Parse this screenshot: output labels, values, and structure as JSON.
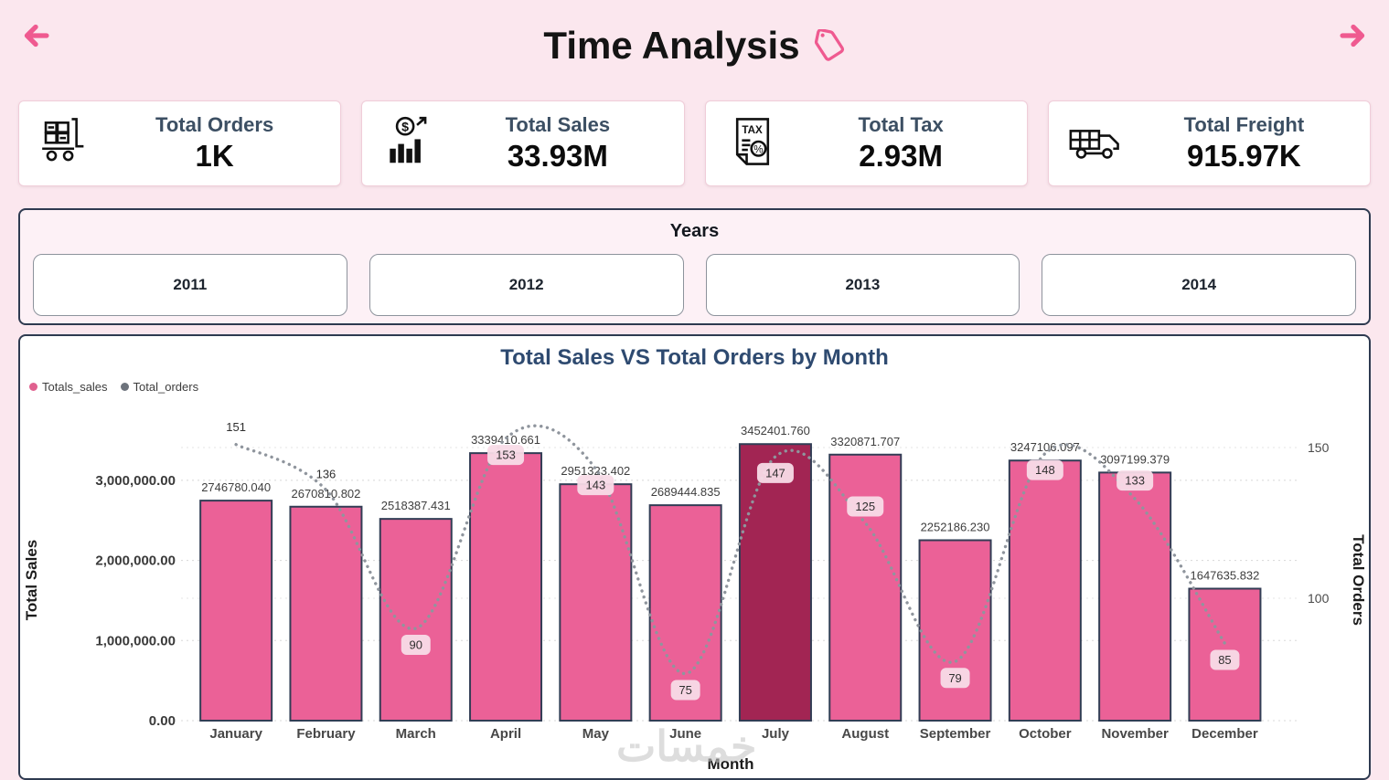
{
  "header": {
    "title": "Time Analysis",
    "back_icon": "arrow-left-icon",
    "forward_icon": "arrow-right-icon",
    "title_icon": "tag-icon"
  },
  "kpis": [
    {
      "label": "Total Orders",
      "value": "1K",
      "icon": "pallet-trolley-icon"
    },
    {
      "label": "Total Sales",
      "value": "33.93M",
      "icon": "money-growth-icon"
    },
    {
      "label": "Total Tax",
      "value": "2.93M",
      "icon": "tax-document-icon"
    },
    {
      "label": "Total Freight",
      "value": "915.97K",
      "icon": "delivery-truck-icon"
    }
  ],
  "years_slicer": {
    "title": "Years",
    "options": [
      "2011",
      "2012",
      "2013",
      "2014"
    ]
  },
  "chart_data": {
    "type": "combo-bar-line",
    "title": "Total Sales VS Total Orders by Month",
    "xlabel": "Month",
    "ylabel_left": "Total Sales",
    "ylabel_right": "Total Orders",
    "legend": [
      {
        "name": "Totals_sales",
        "color": "#e0618f"
      },
      {
        "name": "Total_orders",
        "color": "#6d737c"
      }
    ],
    "legend_position": "top-left",
    "grid": true,
    "categories": [
      "January",
      "February",
      "March",
      "April",
      "May",
      "June",
      "July",
      "August",
      "September",
      "October",
      "November",
      "December"
    ],
    "series": [
      {
        "name": "Totals_sales",
        "type": "bar",
        "values": [
          2746780.04,
          2670810.802,
          2518387.431,
          3339410.661,
          2951323.402,
          2689444.835,
          3452401.76,
          3320871.707,
          2252186.23,
          3247106.097,
          3097199.379,
          1647635.832
        ],
        "labels": [
          "2746780.040",
          "2670810.802",
          "2518387.431",
          "3339410.661",
          "2951323.402",
          "2689444.835",
          "3452401.760",
          "3320871.707",
          "2252186.230",
          "3247106.097",
          "3097199.379",
          "1647635.832"
        ]
      },
      {
        "name": "Total_orders",
        "type": "line",
        "values": [
          151,
          136,
          90,
          153,
          143,
          75,
          147,
          125,
          79,
          148,
          133,
          85
        ],
        "labels": [
          "151",
          "136",
          "90",
          "153",
          "143",
          "75",
          "147",
          "125",
          "79",
          "148",
          "133",
          "85"
        ]
      }
    ],
    "highlight_index": 6,
    "y_left_ticks": [
      {
        "label": "0.00",
        "value": 0
      },
      {
        "label": "1,000,000.00",
        "value": 1000000
      },
      {
        "label": "2,000,000.00",
        "value": 2000000
      },
      {
        "label": "3,000,000.00",
        "value": 3000000
      }
    ],
    "y_right_ticks": [
      {
        "label": "150",
        "value": 150
      },
      {
        "label": "100",
        "value": 100
      }
    ],
    "colors": {
      "bar": "#eb6197",
      "bar_highlight": "#a22553",
      "bar_border": "#323d55",
      "line": "#8f959d",
      "label_pill": "#f8dbe7"
    }
  },
  "watermark": "خمسات",
  "colors": {
    "page_background": "#fbe7ee",
    "accent_pink": "#ef5a90",
    "panel_border": "#2e3a50",
    "chart_title": "#2e4a70"
  }
}
